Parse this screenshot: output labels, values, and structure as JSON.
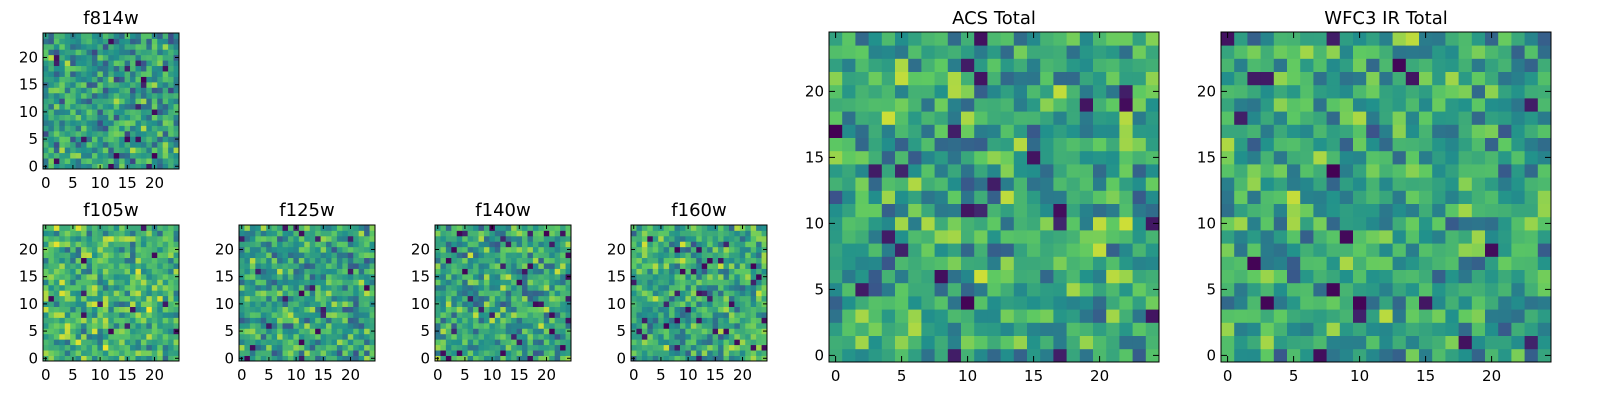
{
  "figure": {
    "description_free": true
  },
  "colormap": {
    "name": "viridis",
    "stops": [
      "#440154",
      "#3b528b",
      "#21918c",
      "#5ec962",
      "#fde725"
    ]
  },
  "chart_data": [
    {
      "id": "f814w",
      "type": "heatmap",
      "title": "f814w",
      "grid_size": 25,
      "seed": 11,
      "xticks": [
        0,
        5,
        10,
        15,
        20
      ],
      "yticks": [
        0,
        5,
        10,
        15,
        20
      ],
      "xlim": [
        -0.5,
        24.5
      ],
      "ylim": [
        -0.5,
        24.5
      ],
      "value_range": [
        0,
        1
      ],
      "dark_fraction": 0.04,
      "bright_bias": 0.55
    },
    {
      "id": "f105w",
      "type": "heatmap",
      "title": "f105w",
      "grid_size": 25,
      "seed": 23,
      "xticks": [
        0,
        5,
        10,
        15,
        20
      ],
      "yticks": [
        0,
        5,
        10,
        15,
        20
      ],
      "xlim": [
        -0.5,
        24.5
      ],
      "ylim": [
        -0.5,
        24.5
      ],
      "value_range": [
        0,
        1
      ],
      "dark_fraction": 0.02,
      "bright_bias": 0.65
    },
    {
      "id": "f125w",
      "type": "heatmap",
      "title": "f125w",
      "grid_size": 25,
      "seed": 37,
      "xticks": [
        0,
        5,
        10,
        15,
        20
      ],
      "yticks": [
        0,
        5,
        10,
        15,
        20
      ],
      "xlim": [
        -0.5,
        24.5
      ],
      "ylim": [
        -0.5,
        24.5
      ],
      "value_range": [
        0,
        1
      ],
      "dark_fraction": 0.04,
      "bright_bias": 0.58
    },
    {
      "id": "f140w",
      "type": "heatmap",
      "title": "f140w",
      "grid_size": 25,
      "seed": 41,
      "xticks": [
        0,
        5,
        10,
        15,
        20
      ],
      "yticks": [
        0,
        5,
        10,
        15,
        20
      ],
      "xlim": [
        -0.5,
        24.5
      ],
      "ylim": [
        -0.5,
        24.5
      ],
      "value_range": [
        0,
        1
      ],
      "dark_fraction": 0.05,
      "bright_bias": 0.58
    },
    {
      "id": "f160w",
      "type": "heatmap",
      "title": "f160w",
      "grid_size": 25,
      "seed": 53,
      "xticks": [
        0,
        5,
        10,
        15,
        20
      ],
      "yticks": [
        0,
        5,
        10,
        15,
        20
      ],
      "xlim": [
        -0.5,
        24.5
      ],
      "ylim": [
        -0.5,
        24.5
      ],
      "value_range": [
        0,
        1
      ],
      "dark_fraction": 0.06,
      "bright_bias": 0.6
    },
    {
      "id": "acs_total",
      "type": "heatmap",
      "title": "ACS Total",
      "grid_size": 25,
      "seed": 67,
      "xticks": [
        0,
        5,
        10,
        15,
        20
      ],
      "yticks": [
        0,
        5,
        10,
        15,
        20
      ],
      "xlim": [
        -0.5,
        24.5
      ],
      "ylim": [
        -0.5,
        24.5
      ],
      "value_range": [
        0,
        1
      ],
      "dark_fraction": 0.035,
      "bright_bias": 0.6
    },
    {
      "id": "wfc3_ir_total",
      "type": "heatmap",
      "title": "WFC3 IR Total",
      "grid_size": 25,
      "seed": 79,
      "xticks": [
        0,
        5,
        10,
        15,
        20
      ],
      "yticks": [
        0,
        5,
        10,
        15,
        20
      ],
      "xlim": [
        -0.5,
        24.5
      ],
      "ylim": [
        -0.5,
        24.5
      ],
      "value_range": [
        0,
        1
      ],
      "dark_fraction": 0.03,
      "bright_bias": 0.58
    }
  ]
}
